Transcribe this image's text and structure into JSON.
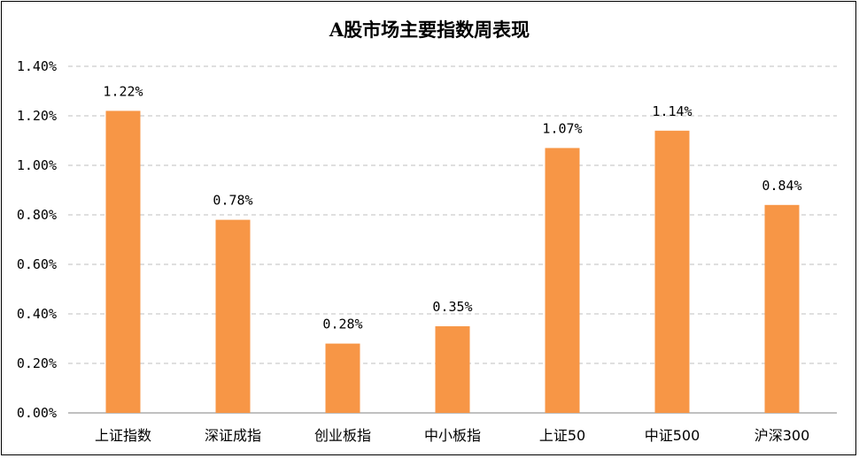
{
  "chart_data": {
    "type": "bar",
    "title": "A股市场主要指数周表现",
    "categories": [
      "上证指数",
      "深证成指",
      "创业板指",
      "中小板指",
      "上证50",
      "中证500",
      "沪深300"
    ],
    "values": [
      1.22,
      0.78,
      0.28,
      0.35,
      1.07,
      1.14,
      0.84
    ],
    "data_labels": [
      "1.22%",
      "0.78%",
      "0.28%",
      "0.35%",
      "1.07%",
      "1.14%",
      "0.84%"
    ],
    "ylim": [
      0,
      1.4
    ],
    "yticks": [
      0,
      0.2,
      0.4,
      0.6,
      0.8,
      1.0,
      1.2,
      1.4
    ],
    "ytick_labels": [
      "0.00%",
      "0.20%",
      "0.40%",
      "0.60%",
      "0.80%",
      "1.00%",
      "1.20%",
      "1.40%"
    ],
    "xlabel": "",
    "ylabel": "",
    "grid": true,
    "legend": "none",
    "bar_color": "#F79646",
    "grid_color": "#BFBFBF",
    "axis_color": "#808080"
  }
}
